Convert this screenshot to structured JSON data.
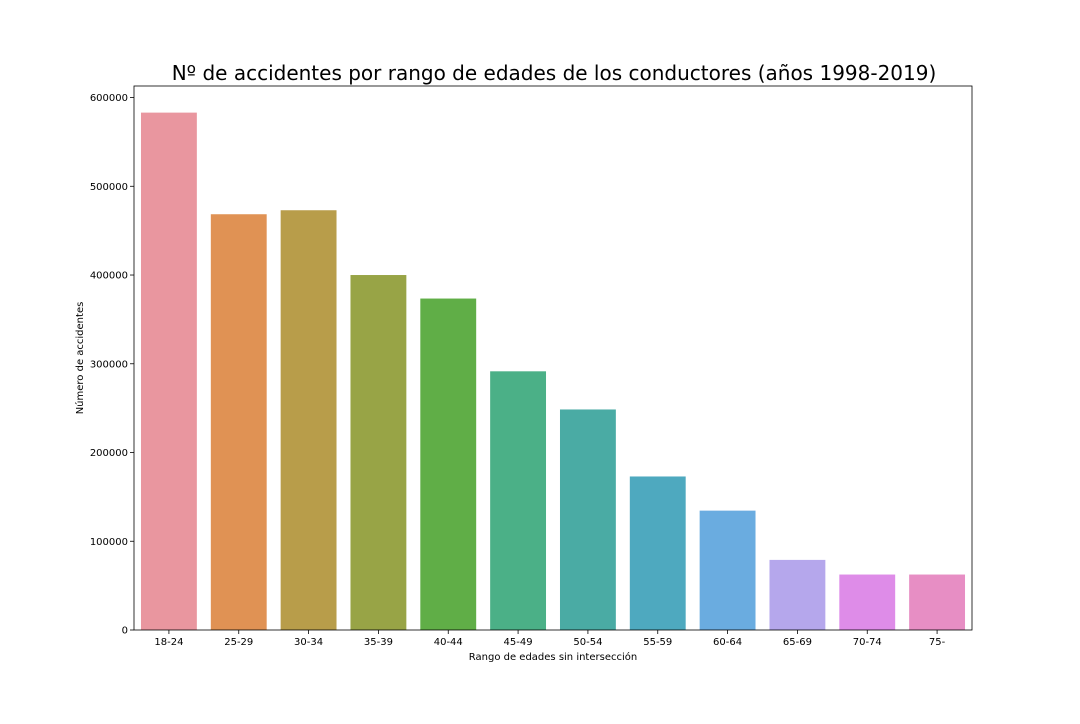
{
  "chart_data": {
    "type": "bar",
    "title": "Nº de accidentes por rango de edades de los conductores (años 1998-2019)",
    "xlabel": "Rango de edades sin intersección",
    "ylabel": "Número de accidentes",
    "categories": [
      "18-24",
      "25-29",
      "30-34",
      "35-39",
      "40-44",
      "45-49",
      "50-54",
      "55-59",
      "60-64",
      "65-69",
      "70-74",
      "75-"
    ],
    "values": [
      583000,
      468500,
      473000,
      400000,
      373500,
      291500,
      248500,
      173000,
      134500,
      79000,
      62500,
      62500
    ],
    "colors": [
      "#e9969f",
      "#e09254",
      "#b89d4a",
      "#98a446",
      "#60ae47",
      "#4bb087",
      "#4aaba4",
      "#4ea9bf",
      "#6aace0",
      "#b5a7ec",
      "#de8ce8",
      "#e78ec4"
    ],
    "ylim": [
      0,
      613000
    ],
    "yticks": [
      0,
      100000,
      200000,
      300000,
      400000,
      500000,
      600000
    ],
    "grid": false,
    "legend": "none"
  }
}
